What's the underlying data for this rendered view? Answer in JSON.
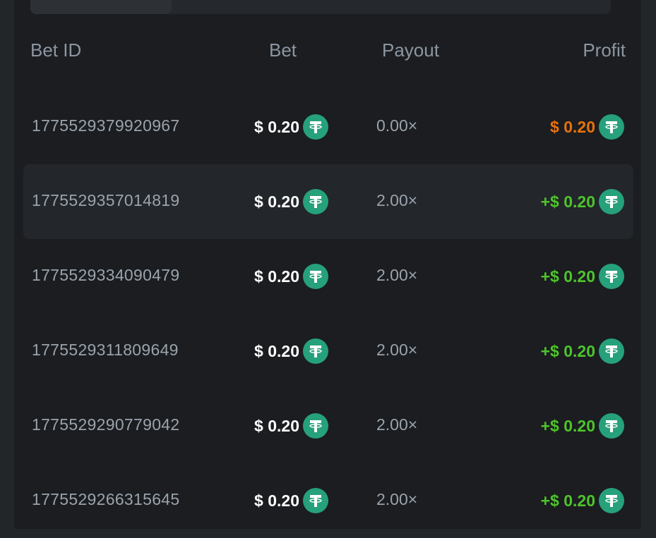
{
  "headers": {
    "bet_id": "Bet ID",
    "bet": "Bet",
    "payout": "Payout",
    "profit": "Profit"
  },
  "colors": {
    "loss": "#e8720c",
    "win": "#4ec42c",
    "coin": "#26a17b"
  },
  "coin_icon": "tether-usdt-icon",
  "rows": [
    {
      "id": "1775529379920967",
      "bet": "$ 0.20",
      "payout": "0.00×",
      "profit": "$ 0.20",
      "result": "loss"
    },
    {
      "id": "1775529357014819",
      "bet": "$ 0.20",
      "payout": "2.00×",
      "profit": "+$ 0.20",
      "result": "win"
    },
    {
      "id": "1775529334090479",
      "bet": "$ 0.20",
      "payout": "2.00×",
      "profit": "+$ 0.20",
      "result": "win"
    },
    {
      "id": "1775529311809649",
      "bet": "$ 0.20",
      "payout": "2.00×",
      "profit": "+$ 0.20",
      "result": "win"
    },
    {
      "id": "1775529290779042",
      "bet": "$ 0.20",
      "payout": "2.00×",
      "profit": "+$ 0.20",
      "result": "win"
    },
    {
      "id": "1775529266315645",
      "bet": "$ 0.20",
      "payout": "2.00×",
      "profit": "+$ 0.20",
      "result": "win"
    }
  ]
}
